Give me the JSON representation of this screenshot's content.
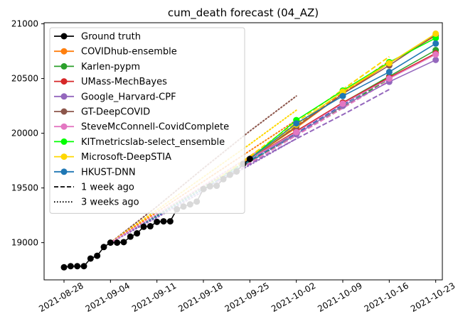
{
  "chart_data": {
    "type": "line",
    "title": "cum_death forecast (04_AZ)",
    "xlabel": "",
    "ylabel": "",
    "x_range": [
      "2021-08-25",
      "2021-10-24"
    ],
    "ylim": [
      18660,
      21010
    ],
    "x_ticks": [
      "2021-08-28",
      "2021-09-04",
      "2021-09-11",
      "2021-09-18",
      "2021-09-25",
      "2021-10-02",
      "2021-10-09",
      "2021-10-16",
      "2021-10-23"
    ],
    "y_ticks": [
      19000,
      19500,
      20000,
      20500,
      21000
    ],
    "y_tick_labels": [
      "19000",
      "19500",
      "20000",
      "20500",
      "21000"
    ],
    "grid": false,
    "legend_position": "upper-left",
    "ground_truth": {
      "name": "Ground truth",
      "color": "#000000",
      "dates": [
        "2021-08-28",
        "2021-08-29",
        "2021-08-30",
        "2021-08-31",
        "2021-09-01",
        "2021-09-02",
        "2021-09-03",
        "2021-09-04",
        "2021-09-05",
        "2021-09-06",
        "2021-09-07",
        "2021-09-08",
        "2021-09-09",
        "2021-09-10",
        "2021-09-11",
        "2021-09-12",
        "2021-09-13",
        "2021-09-14",
        "2021-09-15",
        "2021-09-16",
        "2021-09-17",
        "2021-09-18",
        "2021-09-19",
        "2021-09-20",
        "2021-09-21",
        "2021-09-22",
        "2021-09-23",
        "2021-09-24",
        "2021-09-25"
      ],
      "values": [
        18775,
        18785,
        18785,
        18785,
        18855,
        18880,
        18960,
        19000,
        19000,
        19005,
        19055,
        19085,
        19145,
        19150,
        19190,
        19195,
        19195,
        19305,
        19330,
        19350,
        19375,
        19490,
        19515,
        19520,
        19580,
        19620,
        19650,
        19720,
        19765
      ]
    },
    "forecast_dates": [
      "2021-09-25",
      "2021-10-02",
      "2021-10-09",
      "2021-10-16",
      "2021-10-23"
    ],
    "series": [
      {
        "name": "COVIDhub-ensemble",
        "color": "#ff7f0e",
        "values": [
          19765,
          20050,
          20360,
          20640,
          20890
        ]
      },
      {
        "name": "Karlen-pypm",
        "color": "#2ca02c",
        "values": [
          19765,
          20010,
          20280,
          20520,
          20760
        ]
      },
      {
        "name": "UMass-MechBayes",
        "color": "#d62728",
        "values": [
          19765,
          20020,
          20280,
          20510,
          20730
        ]
      },
      {
        "name": "Google_Harvard-CPF",
        "color": "#9467bd",
        "values": [
          19765,
          19990,
          20250,
          20470,
          20670
        ]
      },
      {
        "name": "GT-DeepCOVID",
        "color": "#8c564b",
        "values": [
          19765,
          20060,
          20360,
          20620,
          20900
        ]
      },
      {
        "name": "SteveMcConnell-CovidComplete",
        "color": "#e377c2",
        "values": [
          19765,
          20010,
          20270,
          20500,
          20720
        ]
      },
      {
        "name": "KITmetricslab-select_ensemble",
        "color": "#00ff00",
        "values": [
          19765,
          20120,
          20390,
          20650,
          20870
        ]
      },
      {
        "name": "Microsoft-DeepSTIA",
        "color": "#ffd700",
        "values": [
          19765,
          20080,
          20380,
          20640,
          20910
        ]
      },
      {
        "name": "HKUST-DNN",
        "color": "#1f77b4",
        "values": [
          19765,
          20090,
          20340,
          20560,
          20820
        ]
      }
    ],
    "one_week_ago": {
      "dates": [
        "2021-09-18",
        "2021-09-25",
        "2021-10-02",
        "2021-10-09",
        "2021-10-16"
      ],
      "lines": [
        {
          "color": "#ff7f0e",
          "values": [
            19490,
            19780,
            20070,
            20370,
            20660
          ]
        },
        {
          "color": "#2ca02c",
          "values": [
            19490,
            19740,
            19990,
            20240,
            20500
          ]
        },
        {
          "color": "#9467bd",
          "values": [
            19490,
            19720,
            19950,
            20170,
            20400
          ]
        },
        {
          "color": "#e377c2",
          "values": [
            19490,
            19730,
            19980,
            20230,
            20480
          ]
        },
        {
          "color": "#00ff00",
          "values": [
            19490,
            19760,
            20020,
            20270,
            20520
          ]
        },
        {
          "color": "#ffd700",
          "values": [
            19490,
            19790,
            20100,
            20400,
            20700
          ]
        },
        {
          "color": "#1f77b4",
          "values": [
            19490,
            19750,
            20000,
            20260,
            20510
          ]
        }
      ]
    },
    "three_weeks_ago": {
      "dates": [
        "2021-09-04",
        "2021-09-11",
        "2021-09-18",
        "2021-09-25",
        "2021-10-02"
      ],
      "lines": [
        {
          "color": "#8c564b",
          "values": [
            19000,
            19330,
            19680,
            20020,
            20340
          ]
        },
        {
          "color": "#ffd700",
          "values": [
            19000,
            19300,
            19600,
            19900,
            20210
          ]
        },
        {
          "color": "#ff7f0e",
          "values": [
            19000,
            19280,
            19560,
            19840,
            20120
          ]
        },
        {
          "color": "#2ca02c",
          "values": [
            19000,
            19250,
            19510,
            19760,
            20010
          ]
        },
        {
          "color": "#1f77b4",
          "values": [
            19000,
            19240,
            19490,
            19740,
            19990
          ]
        },
        {
          "color": "#9467bd",
          "values": [
            19000,
            19230,
            19470,
            19710,
            19950
          ]
        },
        {
          "color": "#e377c2",
          "values": [
            19000,
            19260,
            19520,
            19790,
            20050
          ]
        }
      ]
    },
    "legend": {
      "entries": [
        {
          "label": "Ground truth",
          "color": "#000000",
          "style": "solid-marker"
        },
        {
          "label": "COVIDhub-ensemble",
          "color": "#ff7f0e",
          "style": "solid-marker"
        },
        {
          "label": "Karlen-pypm",
          "color": "#2ca02c",
          "style": "solid-marker"
        },
        {
          "label": "UMass-MechBayes",
          "color": "#d62728",
          "style": "solid-marker"
        },
        {
          "label": "Google_Harvard-CPF",
          "color": "#9467bd",
          "style": "solid-marker"
        },
        {
          "label": "GT-DeepCOVID",
          "color": "#8c564b",
          "style": "solid-marker"
        },
        {
          "label": "SteveMcConnell-CovidComplete",
          "color": "#e377c2",
          "style": "solid-marker"
        },
        {
          "label": "KITmetricslab-select_ensemble",
          "color": "#00ff00",
          "style": "solid-marker"
        },
        {
          "label": "Microsoft-DeepSTIA",
          "color": "#ffd700",
          "style": "solid-marker"
        },
        {
          "label": "HKUST-DNN",
          "color": "#1f77b4",
          "style": "solid-marker"
        },
        {
          "label": "1 week ago",
          "color": "#000000",
          "style": "dashed"
        },
        {
          "label": "3 weeks ago",
          "color": "#000000",
          "style": "dotted"
        }
      ]
    }
  }
}
